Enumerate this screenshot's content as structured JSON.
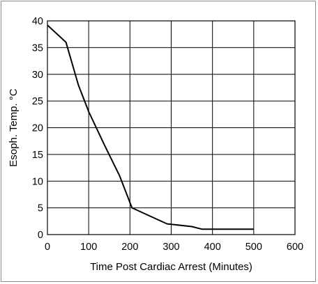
{
  "chart_data": {
    "type": "line",
    "title": "",
    "xlabel": "Time Post Cardiac Arrest (Minutes)",
    "ylabel": "Esoph. Temp. °C",
    "xlim": [
      0,
      600
    ],
    "ylim": [
      0,
      40
    ],
    "xticks": [
      0,
      100,
      200,
      300,
      400,
      500,
      600
    ],
    "yticks": [
      0,
      5,
      10,
      15,
      20,
      25,
      30,
      35,
      40
    ],
    "grid": true,
    "legend": "none",
    "line_color": "#000000",
    "series": [
      {
        "x": [
          0,
          45,
          75,
          100,
          140,
          175,
          205,
          290,
          350,
          375,
          400,
          500
        ],
        "y": [
          39.2,
          36,
          28,
          23,
          16.5,
          11,
          5,
          2,
          1.5,
          1,
          1,
          1
        ]
      }
    ]
  }
}
